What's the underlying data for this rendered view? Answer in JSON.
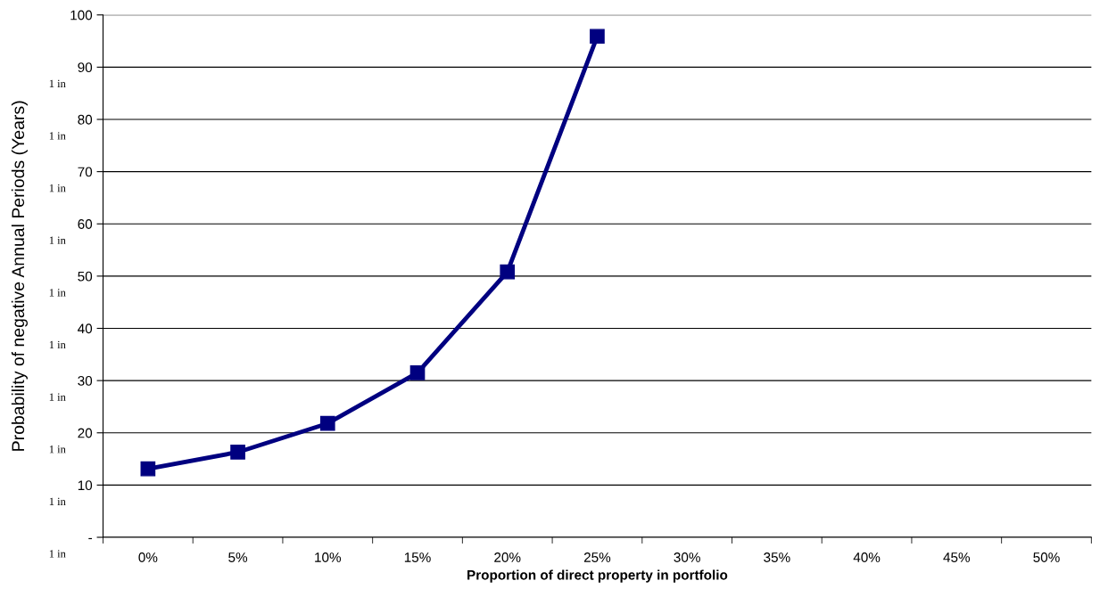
{
  "chart_data": {
    "type": "line",
    "xlabel": "Proportion of direct property in portfolio",
    "ylabel": "Probability of negative Annual Periods (Years)",
    "categories": [
      "0%",
      "5%",
      "10%",
      "15%",
      "20%",
      "25%",
      "30%",
      "35%",
      "40%",
      "45%",
      "50%"
    ],
    "series": [
      {
        "color": "#000080",
        "values": [
          13.1,
          16.3,
          21.8,
          31.5,
          50.8,
          95.9,
          null,
          null,
          null,
          null,
          null
        ]
      }
    ],
    "ylim": [
      0,
      100
    ],
    "yticks": [
      {
        "value": 0,
        "label": "-"
      },
      10,
      20,
      30,
      40,
      50,
      60,
      70,
      80,
      90,
      100
    ],
    "annotations": [
      "1 in",
      "1 in",
      "1 in",
      "1 in",
      "1 in",
      "1 in",
      "1 in",
      "1 in",
      "1 in",
      "1 in"
    ],
    "grid": "y",
    "marker": "square",
    "line_style": "solid",
    "legend": false
  }
}
